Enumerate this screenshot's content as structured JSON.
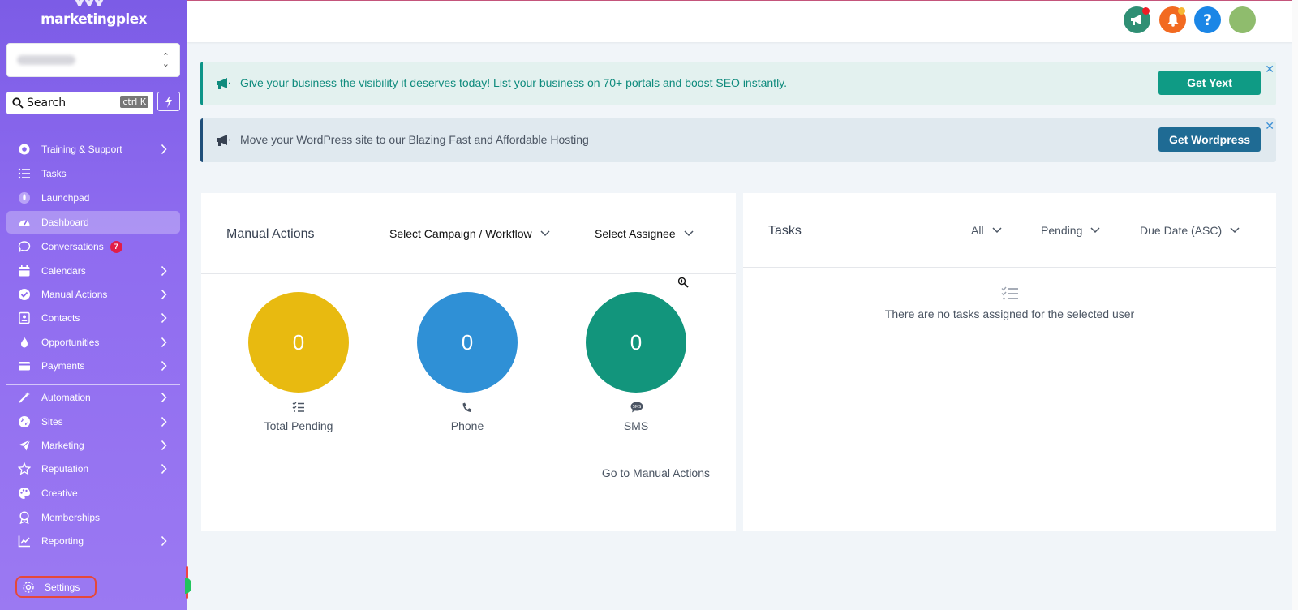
{
  "app": {
    "brand": "marketingplex"
  },
  "search": {
    "label": "Search",
    "shortcut": "ctrl K"
  },
  "sidebar": {
    "items": [
      {
        "label": "Training & Support",
        "icon": "lifebuoy-icon",
        "arrow": true
      },
      {
        "label": "Tasks",
        "icon": "tasks-icon",
        "arrow": false
      },
      {
        "label": "Launchpad",
        "icon": "rocket-icon",
        "arrow": false
      },
      {
        "label": "Dashboard",
        "icon": "dashboard-icon",
        "arrow": false,
        "active": true
      },
      {
        "label": "Conversations",
        "icon": "chat-icon",
        "arrow": false,
        "badge": "7"
      },
      {
        "label": "Calendars",
        "icon": "calendar-icon",
        "arrow": true
      },
      {
        "label": "Manual Actions",
        "icon": "check-circle-icon",
        "arrow": true
      },
      {
        "label": "Contacts",
        "icon": "contacts-icon",
        "arrow": true
      },
      {
        "label": "Opportunities",
        "icon": "flame-icon",
        "arrow": true
      },
      {
        "label": "Payments",
        "icon": "credit-card-icon",
        "arrow": true
      },
      {
        "label": "Automation",
        "icon": "magic-wand-icon",
        "arrow": true
      },
      {
        "label": "Sites",
        "icon": "globe-icon",
        "arrow": true
      },
      {
        "label": "Marketing",
        "icon": "paper-plane-icon",
        "arrow": true
      },
      {
        "label": "Reputation",
        "icon": "star-icon",
        "arrow": true
      },
      {
        "label": "Creative",
        "icon": "palette-icon",
        "arrow": false
      },
      {
        "label": "Memberships",
        "icon": "award-icon",
        "arrow": false
      },
      {
        "label": "Reporting",
        "icon": "chart-icon",
        "arrow": true
      }
    ],
    "settings_label": "Settings"
  },
  "banners": [
    {
      "text": "Give your business the visibility it deserves today! List your business on 70+ portals and boost SEO instantly.",
      "button": "Get Yext"
    },
    {
      "text": "Move your WordPress site to our Blazing Fast and Affordable Hosting",
      "button": "Get Wordpress"
    }
  ],
  "manual_actions": {
    "title": "Manual Actions",
    "campaign_dropdown": "Select Campaign / Workflow",
    "assignee_dropdown": "Select Assignee",
    "metrics": [
      {
        "value": "0",
        "label": "Total Pending",
        "color": "#e8ba10",
        "icon": "checklist-icon"
      },
      {
        "value": "0",
        "label": "Phone",
        "color": "#2f90d6",
        "icon": "phone-icon"
      },
      {
        "value": "0",
        "label": "SMS",
        "color": "#12957c",
        "icon": "sms-icon"
      }
    ],
    "link": "Go to Manual Actions"
  },
  "tasks": {
    "title": "Tasks",
    "filter_all": "All",
    "filter_status": "Pending",
    "filter_sort": "Due Date (ASC)",
    "empty_text": "There are no tasks assigned for the selected user"
  },
  "colors": {
    "sidebar": "#8a68ee",
    "accent_teal": "#0f9b85",
    "accent_blue": "#1f6b94"
  }
}
